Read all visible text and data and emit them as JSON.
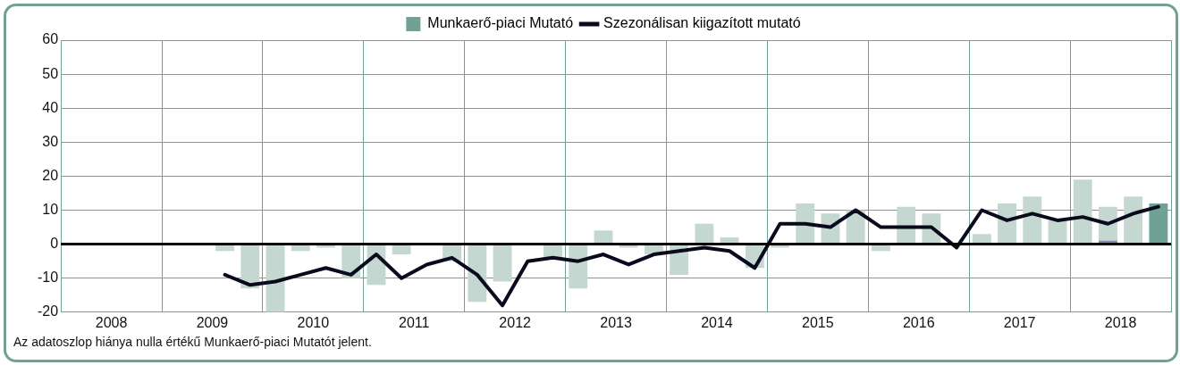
{
  "chart_data": {
    "type": "bar",
    "x": [
      2009.625,
      2009.875,
      2010.125,
      2010.375,
      2010.625,
      2010.875,
      2011.125,
      2011.375,
      2011.625,
      2011.875,
      2012.125,
      2012.375,
      2012.625,
      2012.875,
      2013.125,
      2013.375,
      2013.625,
      2013.875,
      2014.125,
      2014.375,
      2014.625,
      2014.875,
      2015.125,
      2015.375,
      2015.625,
      2015.875,
      2016.125,
      2016.375,
      2016.625,
      2016.875,
      2017.125,
      2017.375,
      2017.625,
      2017.875,
      2018.125,
      2018.375,
      2018.625,
      2018.875
    ],
    "series": [
      {
        "name": "Munkaerő-piaci Mutató",
        "colors": [
          "#c4d8d1",
          "#c4d8d1",
          "#c4d8d1",
          "#c4d8d1",
          "#c4d8d1",
          "#c4d8d1",
          "#c4d8d1",
          "#c4d8d1",
          "#c4d8d1",
          "#c4d8d1",
          "#c4d8d1",
          "#c4d8d1",
          "#c4d8d1",
          "#c4d8d1",
          "#c4d8d1",
          "#c4d8d1",
          "#c4d8d1",
          "#c4d8d1",
          "#c4d8d1",
          "#c4d8d1",
          "#c4d8d1",
          "#c4d8d1",
          "#c4d8d1",
          "#c4d8d1",
          "#c4d8d1",
          "#c4d8d1",
          "#c4d8d1",
          "#c4d8d1",
          "#c4d8d1",
          "#c4d8d1",
          "#c4d8d1",
          "#c4d8d1",
          "#c4d8d1",
          "#c4d8d1",
          "#c4d8d1",
          "#c4d8d1",
          "#c4d8d1",
          "#6fa295"
        ],
        "values": [
          -2,
          -13,
          -20,
          -2,
          -1,
          -10,
          -12,
          -3,
          0,
          -5,
          -17,
          -11,
          0,
          -4,
          -13,
          4,
          -1,
          -3,
          -9,
          6,
          2,
          -7,
          -1,
          12,
          9,
          10,
          -2,
          11,
          9,
          0,
          3,
          12,
          14,
          7,
          19,
          11,
          14,
          12
        ]
      },
      {
        "color": "#8a88ab",
        "values": [
          null,
          null,
          null,
          null,
          null,
          null,
          null,
          null,
          null,
          null,
          null,
          null,
          null,
          null,
          null,
          null,
          null,
          null,
          null,
          null,
          null,
          null,
          null,
          null,
          null,
          null,
          null,
          null,
          null,
          null,
          null,
          null,
          null,
          null,
          null,
          1,
          null,
          null
        ]
      },
      {
        "name": "Szezonálisan kiigazított mutató",
        "type": "line",
        "color": "#0a0a1e",
        "values": [
          -9,
          -12,
          -11,
          -9,
          -7,
          -9,
          -3,
          -10,
          -6,
          -4,
          -9,
          -18,
          -5,
          -4,
          -5,
          -3,
          -6,
          -3,
          -2,
          -1,
          -2,
          -7,
          6,
          6,
          5,
          10,
          5,
          5,
          5,
          -1,
          10,
          7,
          9,
          7,
          8,
          6,
          9,
          11
        ]
      }
    ],
    "xlim": [
      2008,
      2019
    ],
    "xticks": [
      {
        "value": 2008,
        "label": null
      },
      {
        "value": 2008.5,
        "label": "2008"
      },
      {
        "value": 2009,
        "label": null
      },
      {
        "value": 2009.5,
        "label": "2009"
      },
      {
        "value": 2010,
        "label": null
      },
      {
        "value": 2010.5,
        "label": "2010"
      },
      {
        "value": 2011,
        "label": null
      },
      {
        "value": 2011.5,
        "label": "2011"
      },
      {
        "value": 2012,
        "label": null
      },
      {
        "value": 2012.5,
        "label": "2012"
      },
      {
        "value": 2013,
        "label": null
      },
      {
        "value": 2013.5,
        "label": "2013"
      },
      {
        "value": 2014,
        "label": null
      },
      {
        "value": 2014.5,
        "label": "2014"
      },
      {
        "value": 2015,
        "label": null
      },
      {
        "value": 2015.5,
        "label": "2015"
      },
      {
        "value": 2016,
        "label": null
      },
      {
        "value": 2016.5,
        "label": "2016"
      },
      {
        "value": 2017,
        "label": null
      },
      {
        "value": 2017.5,
        "label": "2017"
      },
      {
        "value": 2018,
        "label": null
      },
      {
        "value": 2018.5,
        "label": "2018"
      },
      {
        "value": 2019,
        "label": null
      }
    ],
    "ylim": [
      -20,
      60
    ],
    "yticks": [
      -20,
      -10,
      0,
      10,
      20,
      30,
      40,
      50,
      60
    ],
    "grid": true,
    "legend": "top",
    "marker": "none",
    "line_style": "solid",
    "ref_lines": [
      {
        "axis": "y",
        "value": 0,
        "color": "#000000"
      }
    ],
    "annotations": [
      "Az adatoszlop hiánya nulla értékű Munkaerő-piaci Mutatót jelent."
    ]
  }
}
